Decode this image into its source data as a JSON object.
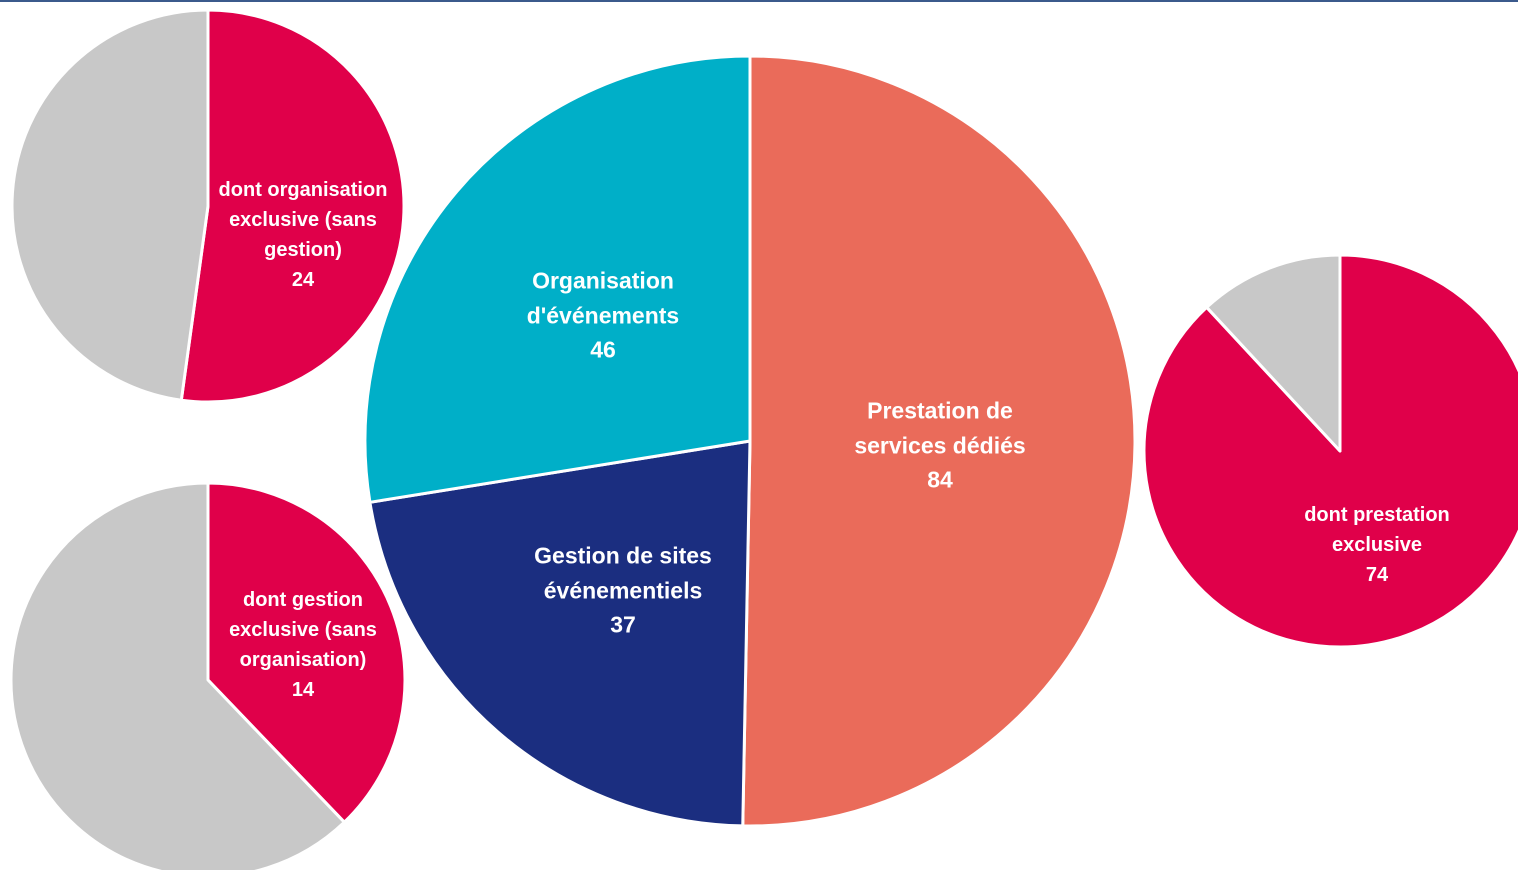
{
  "chart_data": [
    {
      "type": "pie",
      "categories": [
        "Prestation de services dédiés",
        "Gestion de sites événementiels",
        "Organisation d'événements"
      ],
      "values": [
        84,
        37,
        46
      ],
      "colors": [
        "#ea6b5a",
        "#1b2e80",
        "#00afc8"
      ]
    },
    {
      "type": "pie",
      "categories": [
        "dont organisation exclusive (sans gestion)",
        null
      ],
      "values": [
        24,
        22
      ],
      "colors": [
        "#e0004a",
        "#c8c8c8"
      ]
    },
    {
      "type": "pie",
      "categories": [
        "dont gestion exclusive (sans organisation)",
        null
      ],
      "values": [
        14,
        23
      ],
      "colors": [
        "#e0004a",
        "#c8c8c8"
      ]
    },
    {
      "type": "pie",
      "categories": [
        "dont prestation exclusive",
        null
      ],
      "values": [
        74,
        10
      ],
      "colors": [
        "#e0004a",
        "#c8c8c8"
      ]
    }
  ]
}
